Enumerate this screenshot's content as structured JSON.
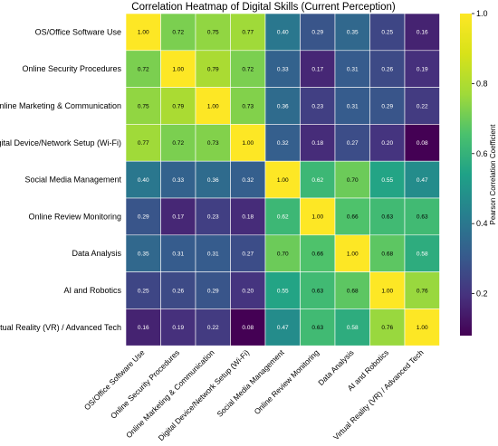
{
  "chart_data": {
    "type": "heatmap",
    "title": "Correlation Heatmap of Digital Skills (Current Perception)",
    "rows": [
      "OS/Office Software Use",
      "Online Security Procedures",
      "Online Marketing & Communication",
      "Digital Device/Network Setup (Wi-Fi)",
      "Social Media Management",
      "Online Review Monitoring",
      "Data Analysis",
      "AI and Robotics",
      "Virtual Reality (VR) / Advanced Tech"
    ],
    "columns": [
      "OS/Office Software Use",
      "Online Security Procedures",
      "Online Marketing & Communication",
      "Digital Device/Network Setup (Wi-Fi)",
      "Social Media Management",
      "Online Review Monitoring",
      "Data Analysis",
      "AI and Robotics",
      "Virtual Reality (VR) / Advanced Tech"
    ],
    "values": [
      [
        1.0,
        0.72,
        0.75,
        0.77,
        0.4,
        0.29,
        0.35,
        0.25,
        0.16
      ],
      [
        0.72,
        1.0,
        0.79,
        0.72,
        0.33,
        0.17,
        0.31,
        0.26,
        0.19
      ],
      [
        0.75,
        0.79,
        1.0,
        0.73,
        0.36,
        0.23,
        0.31,
        0.29,
        0.22
      ],
      [
        0.77,
        0.72,
        0.73,
        1.0,
        0.32,
        0.18,
        0.27,
        0.2,
        0.08
      ],
      [
        0.4,
        0.33,
        0.36,
        0.32,
        1.0,
        0.62,
        0.7,
        0.55,
        0.47
      ],
      [
        0.29,
        0.17,
        0.23,
        0.18,
        0.62,
        1.0,
        0.66,
        0.63,
        0.63
      ],
      [
        0.35,
        0.31,
        0.31,
        0.27,
        0.7,
        0.66,
        1.0,
        0.68,
        0.58
      ],
      [
        0.25,
        0.26,
        0.29,
        0.2,
        0.55,
        0.63,
        0.68,
        1.0,
        0.76
      ],
      [
        0.16,
        0.19,
        0.22,
        0.08,
        0.47,
        0.63,
        0.58,
        0.76,
        1.0
      ]
    ],
    "colorbar": {
      "label": "Pearson Correlation Coefficient",
      "range": [
        0.08,
        1.0
      ],
      "ticks": [
        "1.0",
        "0.8",
        "0.6",
        "0.4",
        "0.2"
      ],
      "tick_values": [
        1.0,
        0.8,
        0.6,
        0.4,
        0.2
      ],
      "colormap": "viridis"
    },
    "grid": true
  }
}
